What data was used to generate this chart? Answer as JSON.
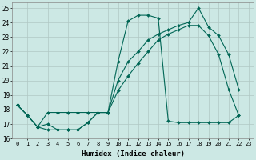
{
  "xlabel": "Humidex (Indice chaleur)",
  "background_color": "#cce8e4",
  "grid_color": "#b0c8c4",
  "line_color": "#006655",
  "line1": {
    "x": [
      0,
      1,
      2,
      3,
      4,
      5,
      6,
      7,
      8,
      9,
      10,
      11,
      12,
      13,
      14,
      15,
      16,
      17,
      18,
      19,
      20,
      21,
      22
    ],
    "y": [
      18.3,
      17.6,
      16.8,
      16.6,
      16.6,
      16.6,
      16.6,
      17.1,
      17.8,
      17.8,
      21.3,
      24.1,
      24.5,
      24.5,
      24.3,
      17.2,
      17.1,
      17.1,
      17.1,
      17.1,
      17.1,
      17.1,
      17.6
    ]
  },
  "line2": {
    "x": [
      0,
      1,
      2,
      3,
      4,
      5,
      6,
      7,
      8,
      9,
      10,
      11,
      12,
      13,
      14,
      15,
      16,
      17,
      18,
      19,
      20,
      21,
      22
    ],
    "y": [
      18.3,
      17.6,
      16.8,
      17.8,
      17.8,
      17.8,
      17.8,
      17.8,
      17.8,
      17.8,
      20.0,
      21.3,
      22.0,
      22.8,
      23.2,
      23.5,
      23.8,
      24.0,
      25.0,
      23.7,
      23.1,
      21.8,
      19.4
    ]
  },
  "line3": {
    "x": [
      0,
      1,
      2,
      3,
      4,
      5,
      6,
      7,
      8,
      9,
      10,
      11,
      12,
      13,
      14,
      15,
      16,
      17,
      18,
      19,
      20,
      21,
      22
    ],
    "y": [
      18.3,
      17.6,
      16.8,
      17.0,
      16.6,
      16.6,
      16.6,
      17.1,
      17.8,
      17.8,
      19.3,
      20.3,
      21.2,
      22.0,
      22.8,
      23.2,
      23.5,
      23.8,
      23.8,
      23.1,
      21.8,
      19.4,
      17.6
    ]
  },
  "ylim": [
    16,
    25.4
  ],
  "xlim": [
    -0.5,
    23.5
  ],
  "yticks": [
    16,
    17,
    18,
    19,
    20,
    21,
    22,
    23,
    24,
    25
  ],
  "xticks": [
    0,
    1,
    2,
    3,
    4,
    5,
    6,
    7,
    8,
    9,
    10,
    11,
    12,
    13,
    14,
    15,
    16,
    17,
    18,
    19,
    20,
    21,
    22,
    23
  ],
  "markersize": 2.0,
  "linewidth": 0.8
}
